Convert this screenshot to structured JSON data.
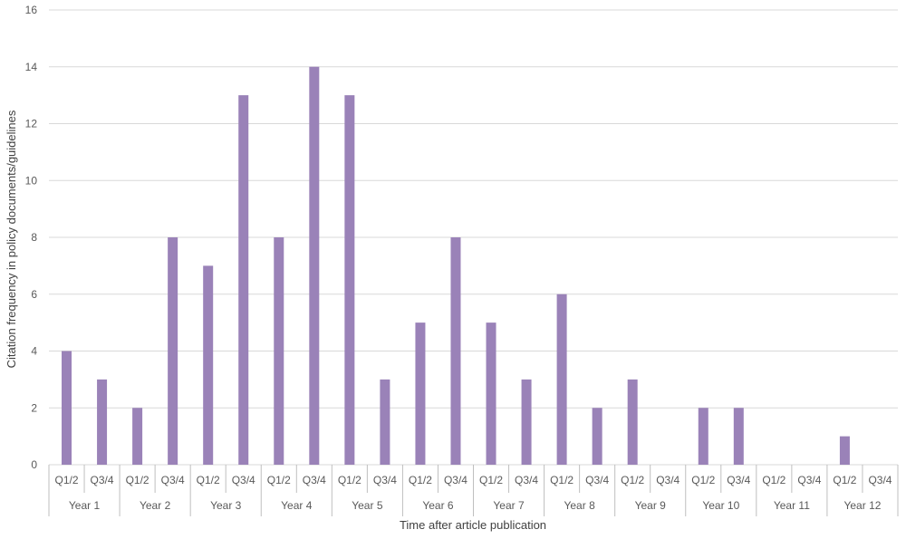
{
  "chart_data": {
    "type": "bar",
    "groups": [
      "Year 1",
      "Year 2",
      "Year 3",
      "Year 4",
      "Year 5",
      "Year 6",
      "Year 7",
      "Year 8",
      "Year 9",
      "Year 10",
      "Year 11",
      "Year 12"
    ],
    "subcategories": [
      "Q1/2",
      "Q3/4"
    ],
    "values": [
      4,
      3,
      2,
      8,
      7,
      13,
      8,
      14,
      13,
      3,
      5,
      8,
      5,
      3,
      6,
      2,
      3,
      0,
      2,
      2,
      0,
      0,
      1,
      0
    ],
    "xlabel": "Time after article publication",
    "ylabel": "Citation frequency in policy documents/guidelines",
    "ylim": [
      0,
      16
    ],
    "yticks": [
      0,
      2,
      4,
      6,
      8,
      10,
      12,
      14,
      16
    ],
    "grid": true,
    "bar_color": "#9a82b8"
  }
}
